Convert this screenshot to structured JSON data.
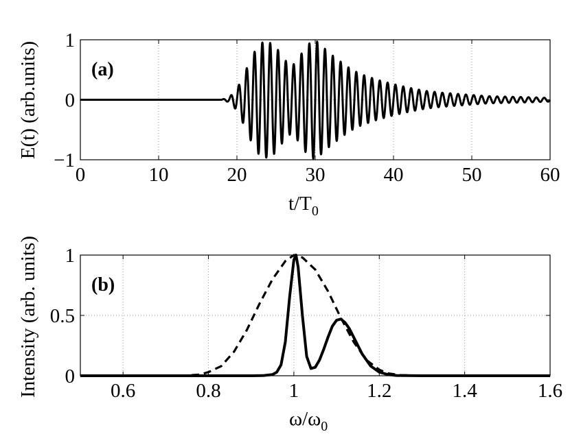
{
  "chart_data": [
    {
      "type": "line",
      "panel_label": "(a)",
      "xlabel": "t/T",
      "xlabel_sub": "0",
      "ylabel": "E(t) (arb.units)",
      "xlim": [
        0,
        60
      ],
      "ylim": [
        -1,
        1
      ],
      "xticks": [
        0,
        10,
        20,
        30,
        40,
        50,
        60
      ],
      "xtick_labels": [
        "0",
        "10",
        "20",
        "30",
        "40",
        "50",
        "60"
      ],
      "yticks": [
        -1,
        0,
        1
      ],
      "ytick_labels": [
        "−1",
        "0",
        "1"
      ],
      "grid": true,
      "series": [
        {
          "style": "solid",
          "color": "#000000",
          "description_points": "oscillating field, carrier period ~1, zero before t=18",
          "carrier_period": 1.0,
          "envelope": {
            "x": [
              0,
              18,
              19,
              20,
              21,
              22,
              23,
              24,
              25,
              26,
              27,
              28,
              29,
              30,
              31,
              32,
              33,
              34,
              35,
              36,
              38,
              40,
              42,
              44,
              46,
              48,
              50,
              52,
              55,
              58,
              60
            ],
            "y": [
              0,
              0,
              0.04,
              0.18,
              0.45,
              0.75,
              0.95,
              0.97,
              0.88,
              0.68,
              0.55,
              0.72,
              0.92,
              1.0,
              0.88,
              0.76,
              0.66,
              0.56,
              0.48,
              0.42,
              0.33,
              0.26,
              0.2,
              0.15,
              0.12,
              0.1,
              0.08,
              0.06,
              0.05,
              0.04,
              0.03
            ]
          }
        }
      ]
    },
    {
      "type": "line",
      "panel_label": "(b)",
      "xlabel": "ω/ω",
      "xlabel_sub": "0",
      "ylabel": "Intensity (arb. units)",
      "xlim": [
        0.5,
        1.6
      ],
      "ylim": [
        0,
        1
      ],
      "xticks": [
        0.6,
        0.8,
        1.0,
        1.2,
        1.4,
        1.6
      ],
      "xtick_labels": [
        "0.6",
        "0.8",
        "1",
        "1.2",
        "1.4",
        "1.6"
      ],
      "yticks": [
        0,
        0.5,
        1
      ],
      "ytick_labels": [
        "0",
        "0.5",
        "1"
      ],
      "grid": true,
      "series": [
        {
          "style": "solid",
          "color": "#000000",
          "x": [
            0.5,
            0.9,
            0.93,
            0.95,
            0.96,
            0.97,
            0.98,
            0.99,
            1.0,
            1.005,
            1.01,
            1.02,
            1.03,
            1.04,
            1.05,
            1.06,
            1.07,
            1.08,
            1.09,
            1.1,
            1.11,
            1.12,
            1.13,
            1.14,
            1.15,
            1.16,
            1.18,
            1.2,
            1.22,
            1.24,
            1.3,
            1.6
          ],
          "y": [
            0,
            0,
            0.002,
            0.01,
            0.03,
            0.09,
            0.28,
            0.65,
            0.96,
            1.0,
            0.9,
            0.5,
            0.16,
            0.06,
            0.07,
            0.13,
            0.22,
            0.32,
            0.41,
            0.46,
            0.47,
            0.44,
            0.39,
            0.32,
            0.25,
            0.18,
            0.08,
            0.03,
            0.01,
            0.002,
            0,
            0
          ]
        },
        {
          "style": "dashed",
          "color": "#000000",
          "x": [
            0.5,
            0.7,
            0.75,
            0.78,
            0.8,
            0.83,
            0.86,
            0.89,
            0.92,
            0.95,
            0.98,
            1.0,
            1.02,
            1.05,
            1.08,
            1.11,
            1.14,
            1.17,
            1.2,
            1.22,
            1.25,
            1.3,
            1.6
          ],
          "y": [
            0,
            0,
            0.002,
            0.01,
            0.03,
            0.08,
            0.2,
            0.38,
            0.6,
            0.8,
            0.95,
            1.0,
            0.98,
            0.88,
            0.7,
            0.48,
            0.28,
            0.13,
            0.05,
            0.02,
            0.005,
            0,
            0
          ]
        }
      ]
    }
  ]
}
